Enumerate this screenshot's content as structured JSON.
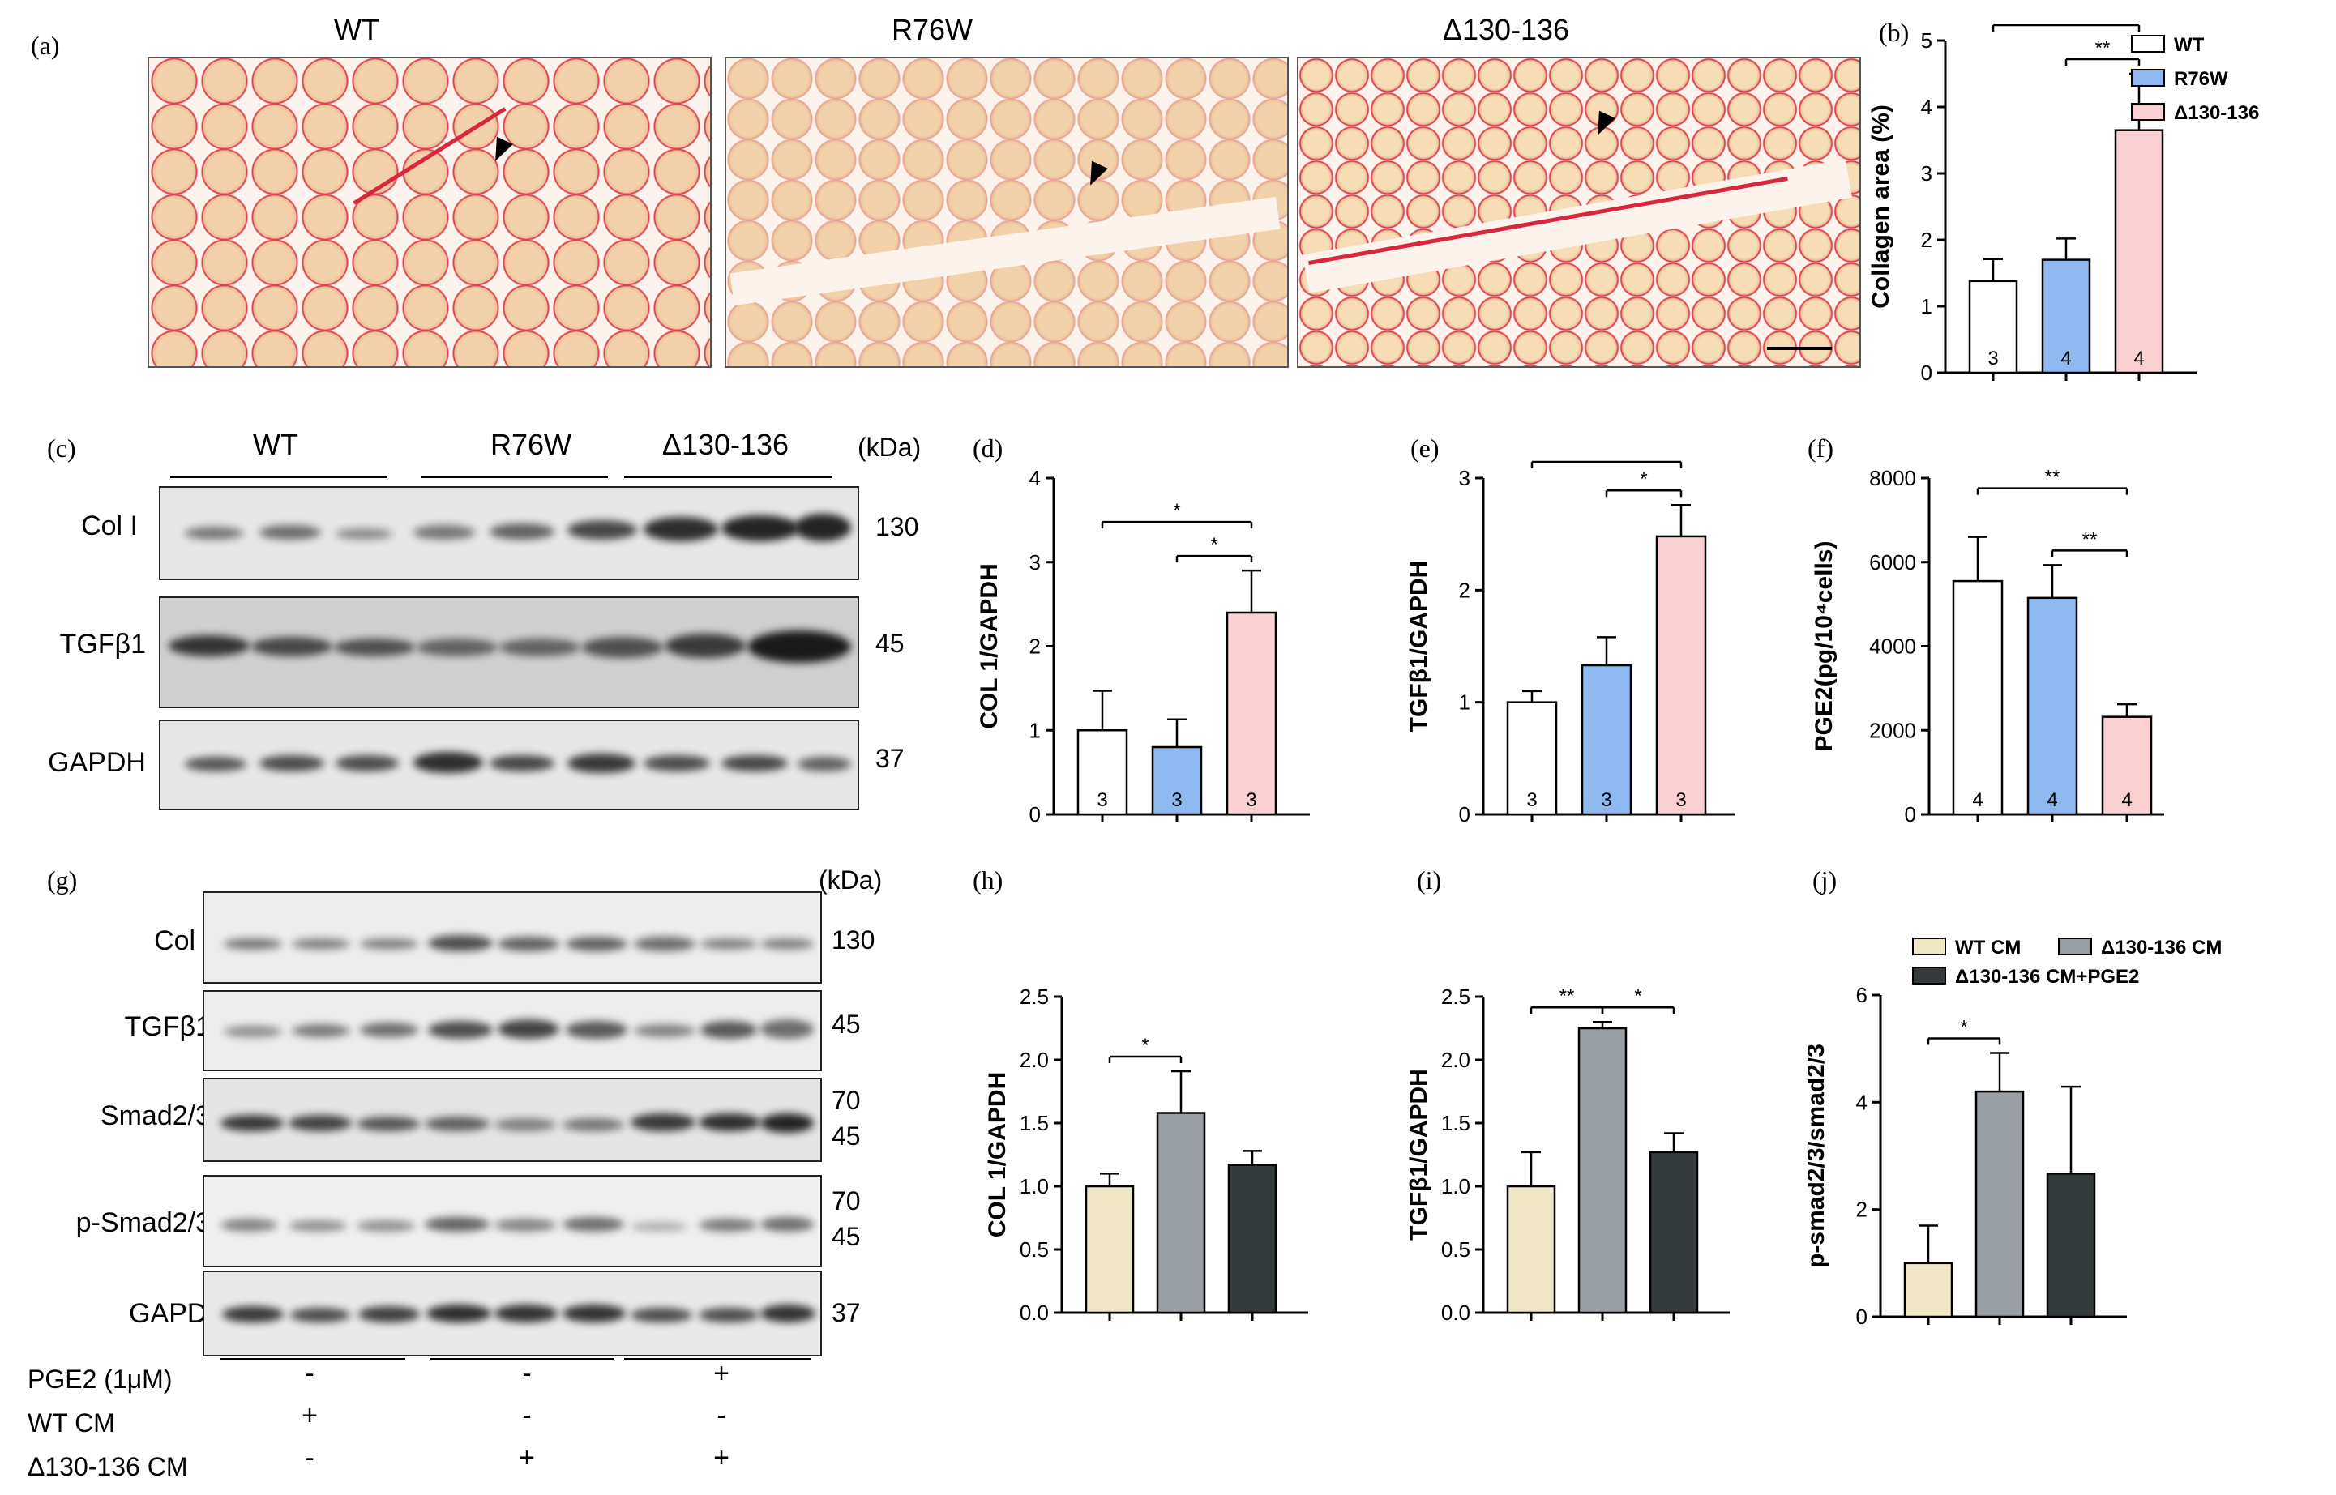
{
  "figure": {
    "panel_labels": [
      "(a)",
      "(b)",
      "(c)",
      "(d)",
      "(e)",
      "(f)",
      "(g)",
      "(h)",
      "(i)",
      "(j)"
    ],
    "panel_a": {
      "titles": [
        "WT",
        "R76W",
        "Δ130-136"
      ],
      "colors": {
        "stain": "#d8263c",
        "fiber": "#f3d2ab",
        "background": "#fbf3ec"
      }
    },
    "blot_c": {
      "groups": [
        "WT",
        "R76W",
        "Δ130-136"
      ],
      "unit": "(kDa)",
      "rows": [
        {
          "label": "Col I",
          "mw": [
            "130"
          ]
        },
        {
          "label": "TGFβ1",
          "mw": [
            "45"
          ]
        },
        {
          "label": "GAPDH",
          "mw": [
            "37"
          ]
        }
      ]
    },
    "blot_g": {
      "unit": "(kDa)",
      "rows": [
        {
          "label": "Col I",
          "mw": [
            "130"
          ]
        },
        {
          "label": "TGFβ1",
          "mw": [
            "45"
          ]
        },
        {
          "label": "Smad2/3",
          "mw": [
            "70",
            "45"
          ]
        },
        {
          "label": "p-Smad2/3",
          "mw": [
            "70",
            "45"
          ]
        },
        {
          "label": "GAPDH",
          "mw": [
            "37"
          ]
        }
      ],
      "treatments": [
        {
          "label": "PGE2 (1μM)",
          "signs": [
            "-",
            "-",
            "+"
          ]
        },
        {
          "label": "WT CM",
          "signs": [
            "+",
            "-",
            "-"
          ]
        },
        {
          "label": "Δ130-136 CM",
          "signs": [
            "-",
            "+",
            "+"
          ]
        }
      ]
    }
  },
  "chart_data": [
    {
      "id": "b",
      "type": "bar",
      "categories": [
        "WT",
        "R76W",
        "Δ130-136"
      ],
      "values": [
        1.38,
        1.7,
        3.65
      ],
      "errors": [
        0.33,
        0.32,
        0.85
      ],
      "n": [
        "3",
        "4",
        "4"
      ],
      "ylabel": "Collagen area (%)",
      "ylim": [
        0,
        5
      ],
      "yticks": [
        "0",
        "1",
        "2",
        "3",
        "4",
        "5"
      ],
      "legend": [
        "WT",
        "R76W",
        "Δ130-136"
      ],
      "legend_position": "top-right",
      "colors": [
        "#ffffff",
        "#8db8f0",
        "#fbd0d3"
      ],
      "significance": [
        {
          "from": 0,
          "to": 2,
          "label": "**"
        },
        {
          "from": 1,
          "to": 2,
          "label": "**"
        }
      ]
    },
    {
      "id": "d",
      "type": "bar",
      "categories": [
        "WT",
        "R76W",
        "Δ130-136"
      ],
      "values": [
        1.0,
        0.8,
        2.4
      ],
      "errors": [
        0.47,
        0.33,
        0.5
      ],
      "n": [
        "3",
        "3",
        "3"
      ],
      "ylabel": "COL 1/GAPDH",
      "ylim": [
        0,
        4
      ],
      "yticks": [
        "0",
        "1",
        "2",
        "3",
        "4"
      ],
      "colors": [
        "#ffffff",
        "#8db8f0",
        "#fbd0d3"
      ],
      "significance": [
        {
          "from": 0,
          "to": 2,
          "label": "*"
        },
        {
          "from": 1,
          "to": 2,
          "label": "*"
        }
      ]
    },
    {
      "id": "e",
      "type": "bar",
      "categories": [
        "WT",
        "R76W",
        "Δ130-136"
      ],
      "values": [
        1.0,
        1.33,
        2.48
      ],
      "errors": [
        0.1,
        0.25,
        0.28
      ],
      "n": [
        "3",
        "3",
        "3"
      ],
      "ylabel": "TGFβ1/GAPDH",
      "ylim": [
        0,
        3
      ],
      "yticks": [
        "0",
        "1",
        "2",
        "3"
      ],
      "colors": [
        "#ffffff",
        "#8db8f0",
        "#fbd0d3"
      ],
      "significance": [
        {
          "from": 0,
          "to": 2,
          "label": "**"
        },
        {
          "from": 1,
          "to": 2,
          "label": "*"
        }
      ]
    },
    {
      "id": "f",
      "type": "bar",
      "categories": [
        "WT",
        "R76W",
        "Δ130-136"
      ],
      "values": [
        5550,
        5150,
        2320
      ],
      "errors": [
        1050,
        780,
        300
      ],
      "n": [
        "4",
        "4",
        "4"
      ],
      "ylabel": "PGE2(pg/10⁴cells)",
      "ylim": [
        0,
        8000
      ],
      "yticks": [
        "0",
        "2000",
        "4000",
        "6000",
        "8000"
      ],
      "colors": [
        "#ffffff",
        "#8db8f0",
        "#fbd0d3"
      ],
      "significance": [
        {
          "from": 0,
          "to": 2,
          "label": "**"
        },
        {
          "from": 1,
          "to": 2,
          "label": "**"
        }
      ]
    },
    {
      "id": "h",
      "type": "bar",
      "categories": [
        "WT CM",
        "Δ130-136 CM",
        "Δ130-136 CM+PGE2"
      ],
      "values": [
        1.0,
        1.58,
        1.17
      ],
      "errors": [
        0.1,
        0.33,
        0.11
      ],
      "ylabel": "COL 1/GAPDH",
      "ylim": [
        0,
        2.5
      ],
      "yticks": [
        "0.0",
        "0.5",
        "1.0",
        "1.5",
        "2.0",
        "2.5"
      ],
      "colors": [
        "#efe7c6",
        "#9a9ea5",
        "#353a3c"
      ],
      "significance": [
        {
          "from": 0,
          "to": 1,
          "label": "*"
        }
      ]
    },
    {
      "id": "i",
      "type": "bar",
      "categories": [
        "WT CM",
        "Δ130-136 CM",
        "Δ130-136 CM+PGE2"
      ],
      "values": [
        1.0,
        2.25,
        1.27
      ],
      "errors": [
        0.27,
        0.05,
        0.15
      ],
      "ylabel": "TGFβ1/GAPDH",
      "ylim": [
        0,
        2.5
      ],
      "yticks": [
        "0.0",
        "0.5",
        "1.0",
        "1.5",
        "2.0",
        "2.5"
      ],
      "colors": [
        "#efe7c6",
        "#9a9ea5",
        "#353a3c"
      ],
      "significance": [
        {
          "from": 0,
          "to": 1,
          "label": "**"
        },
        {
          "from": 1,
          "to": 2,
          "label": "*"
        }
      ]
    },
    {
      "id": "j",
      "type": "bar",
      "categories": [
        "WT CM",
        "Δ130-136 CM",
        "Δ130-136 CM+PGE2"
      ],
      "values": [
        1.0,
        4.2,
        2.67
      ],
      "errors": [
        0.7,
        0.72,
        1.62
      ],
      "ylabel": "p-smad2/3/smad2/3",
      "ylim": [
        0,
        6
      ],
      "yticks": [
        "0",
        "2",
        "4",
        "6"
      ],
      "legend": [
        "WT CM",
        "Δ130-136 CM",
        "Δ130-136 CM+PGE2"
      ],
      "legend_position": "top",
      "colors": [
        "#efe7c6",
        "#9a9ea5",
        "#353a3c"
      ],
      "significance": [
        {
          "from": 0,
          "to": 1,
          "label": "*"
        }
      ]
    }
  ]
}
